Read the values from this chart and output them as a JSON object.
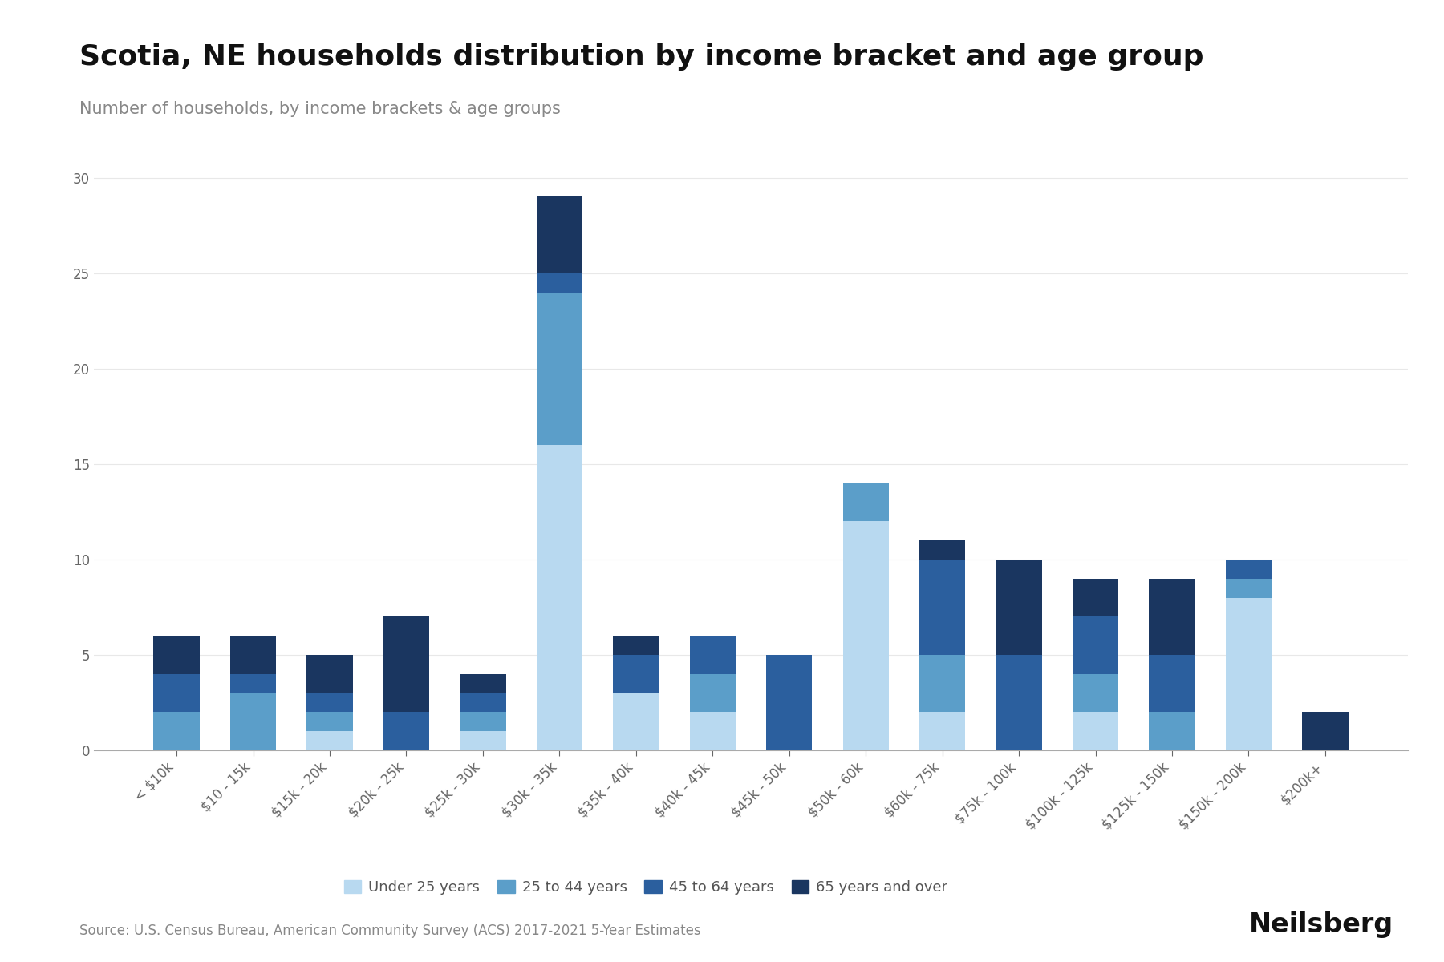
{
  "title": "Scotia, NE households distribution by income bracket and age group",
  "subtitle": "Number of households, by income brackets & age groups",
  "source": "Source: U.S. Census Bureau, American Community Survey (ACS) 2017-2021 5-Year Estimates",
  "categories": [
    "< $10k",
    "$10 - 15k",
    "$15k - 20k",
    "$20k - 25k",
    "$25k - 30k",
    "$30k - 35k",
    "$35k - 40k",
    "$40k - 45k",
    "$45k - 50k",
    "$50k - 60k",
    "$60k - 75k",
    "$75k - 100k",
    "$100k - 125k",
    "$125k - 150k",
    "$150k - 200k",
    "$200k+"
  ],
  "age_groups": [
    "Under 25 years",
    "25 to 44 years",
    "45 to 64 years",
    "65 years and over"
  ],
  "colors": [
    "#b8d9f0",
    "#5b9ec9",
    "#2b5f9e",
    "#1a3660"
  ],
  "data": {
    "Under 25 years": [
      0,
      0,
      1,
      0,
      1,
      16,
      3,
      2,
      0,
      12,
      2,
      0,
      2,
      0,
      8,
      0
    ],
    "25 to 44 years": [
      2,
      3,
      1,
      0,
      1,
      8,
      0,
      2,
      0,
      2,
      3,
      0,
      2,
      2,
      1,
      0
    ],
    "45 to 64 years": [
      2,
      1,
      1,
      2,
      1,
      1,
      2,
      2,
      5,
      0,
      5,
      5,
      3,
      3,
      1,
      0
    ],
    "65 years and over": [
      2,
      2,
      2,
      5,
      1,
      4,
      1,
      0,
      0,
      0,
      1,
      5,
      2,
      4,
      0,
      2
    ]
  },
  "ylim": [
    0,
    32
  ],
  "yticks": [
    0,
    5,
    10,
    15,
    20,
    25,
    30
  ],
  "background_color": "#ffffff",
  "grid_color": "#e8e8e8",
  "title_fontsize": 26,
  "subtitle_fontsize": 15,
  "tick_fontsize": 12,
  "legend_fontsize": 13,
  "source_fontsize": 12,
  "brand": "Neilsberg",
  "brand_fontsize": 24
}
